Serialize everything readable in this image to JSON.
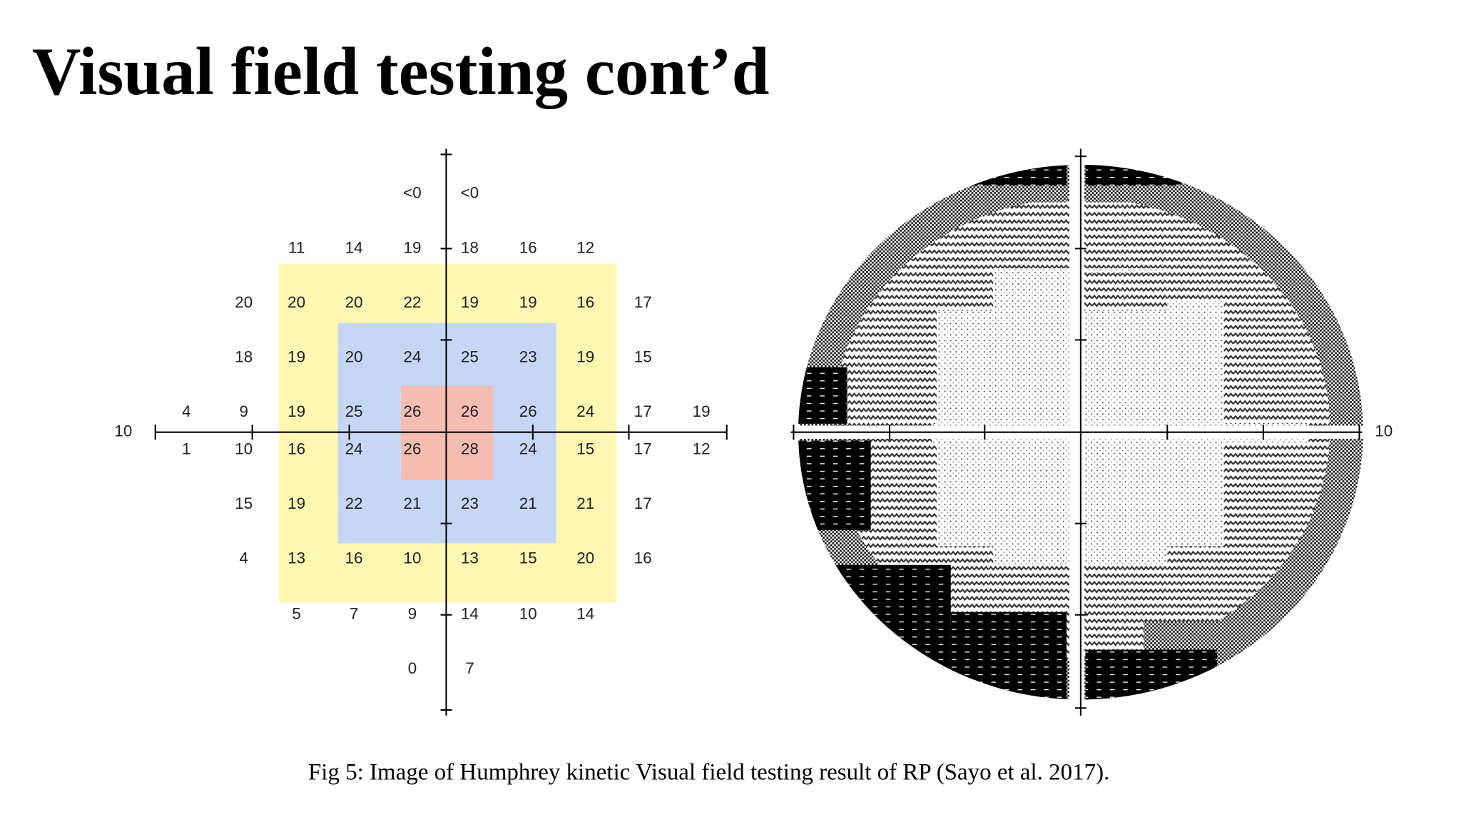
{
  "header": {
    "title": "Visual field testing cont’d"
  },
  "left_figure": {
    "axis_label": "10",
    "rows": [
      [
        null,
        null,
        null,
        null,
        "<0",
        "<0",
        null,
        null,
        null,
        null
      ],
      [
        null,
        null,
        "11",
        "14",
        "19",
        "18",
        "16",
        "12",
        null,
        null
      ],
      [
        null,
        "20",
        "20",
        "20",
        "22",
        "19",
        "19",
        "16",
        "17",
        null
      ],
      [
        null,
        "18",
        "19",
        "20",
        "24",
        "25",
        "23",
        "19",
        "15",
        null
      ],
      [
        "4",
        "9",
        "19",
        "25",
        "26",
        "26",
        "26",
        "24",
        "17",
        "19"
      ],
      [
        "1",
        "10",
        "16",
        "24",
        "26",
        "28",
        "24",
        "15",
        "17",
        "12"
      ],
      [
        null,
        "15",
        "19",
        "22",
        "21",
        "23",
        "21",
        "21",
        "17",
        null
      ],
      [
        null,
        "4",
        "13",
        "16",
        "10",
        "13",
        "15",
        "20",
        "16",
        null
      ],
      [
        null,
        null,
        "5",
        "7",
        "9",
        "14",
        "10",
        "14",
        null,
        null
      ],
      [
        null,
        null,
        null,
        null,
        "0",
        "7",
        null,
        null,
        null,
        null
      ]
    ]
  },
  "right_figure": {
    "axis_label": "10"
  },
  "caption": "Fig 5: Image of  Humphrey kinetic Visual field testing result of RP (Sayo et al. 2017)."
}
